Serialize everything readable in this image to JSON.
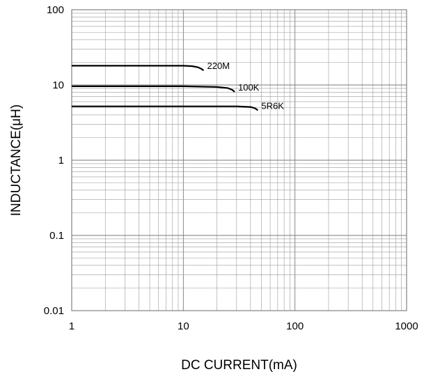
{
  "chart_data": {
    "type": "line",
    "xlabel": "DC CURRENT(mA)",
    "ylabel": "INDUCTANCE(μH)",
    "xscale": "log",
    "yscale": "log",
    "xlim": [
      1,
      1000
    ],
    "ylim": [
      0.01,
      100
    ],
    "grid": true,
    "x_ticks": [
      "1",
      "10",
      "100",
      "1000"
    ],
    "y_ticks": [
      "100",
      "10",
      "1",
      "0.1",
      "0.01"
    ],
    "series": [
      {
        "name": "220M",
        "x": [
          1,
          5,
          10,
          12,
          13.5,
          14.5,
          15.2
        ],
        "y": [
          18,
          18,
          18,
          17.8,
          17.2,
          16.4,
          15.6
        ]
      },
      {
        "name": "100K",
        "x": [
          1,
          5,
          10,
          20,
          25,
          27.5,
          28.8
        ],
        "y": [
          9.6,
          9.6,
          9.6,
          9.4,
          9.1,
          8.6,
          8.1
        ]
      },
      {
        "name": "5R6K",
        "x": [
          1,
          5,
          10,
          30,
          40,
          44,
          46.5
        ],
        "y": [
          5.2,
          5.2,
          5.2,
          5.2,
          5.1,
          4.9,
          4.6
        ]
      }
    ]
  }
}
